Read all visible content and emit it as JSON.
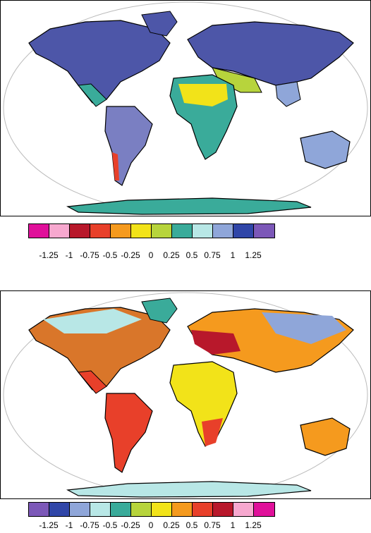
{
  "maps": [
    {
      "id": "top",
      "colorbar": {
        "colors": [
          "#e0109a",
          "#f7a8cf",
          "#b8182b",
          "#e8402a",
          "#f59a1e",
          "#f2e319",
          "#b7d43c",
          "#3aab9a",
          "#b8e7e6",
          "#8fa6d9",
          "#3046a8",
          "#7c58b8"
        ],
        "tick_labels": [
          "-1.25",
          "-1",
          "-0.75",
          "-0.5",
          "-0.25",
          "0",
          "0.25",
          "0.5",
          "0.75",
          "1",
          "1.25"
        ]
      },
      "land_fill": "#4d56a8"
    },
    {
      "id": "bottom",
      "colorbar": {
        "colors": [
          "#7c58b8",
          "#3046a8",
          "#8fa6d9",
          "#b8e7e6",
          "#3aab9a",
          "#b7d43c",
          "#f2e319",
          "#f59a1e",
          "#e8402a",
          "#b8182b",
          "#f7a8cf",
          "#e0109a"
        ],
        "tick_labels": [
          "-1.25",
          "-1",
          "-0.75",
          "-0.5",
          "-0.25",
          "0",
          "0.25",
          "0.5",
          "0.75",
          "1",
          "1.25"
        ]
      },
      "land_fill": "#d9762a"
    }
  ]
}
